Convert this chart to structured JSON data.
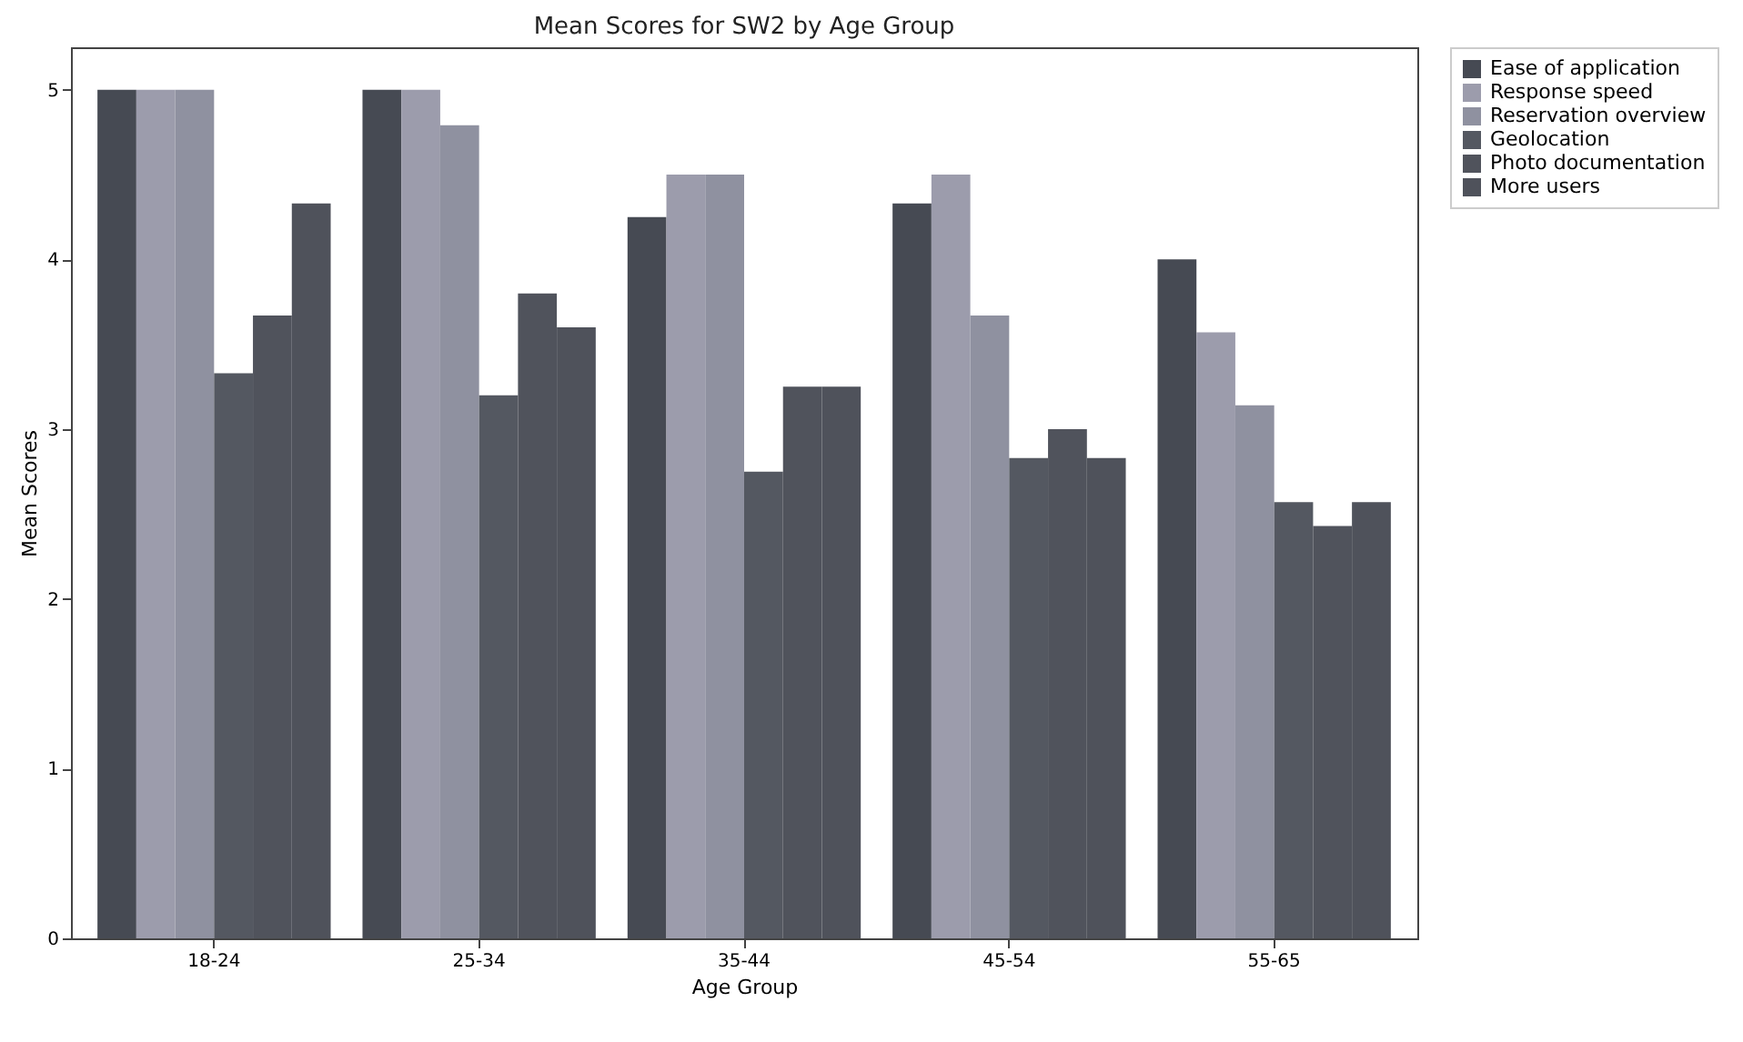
{
  "chart_data": {
    "type": "bar",
    "title": "Mean Scores for SW2 by Age Group",
    "xlabel": "Age Group",
    "ylabel": "Mean Scores",
    "categories": [
      "18-24",
      "25-34",
      "35-44",
      "45-54",
      "55-65"
    ],
    "series": [
      {
        "name": "Ease of application",
        "color": "#464a53",
        "values": [
          5,
          5,
          4.25,
          4.33,
          4.0
        ]
      },
      {
        "name": "Response speed",
        "color": "#9c9cac",
        "values": [
          5,
          5,
          4.5,
          4.5,
          3.57
        ]
      },
      {
        "name": "Reservation overview",
        "color": "#8f91a0",
        "values": [
          5,
          4.79,
          4.5,
          3.67,
          3.14
        ]
      },
      {
        "name": "Geolocation",
        "color": "#545861",
        "values": [
          3.33,
          3.2,
          2.75,
          2.83,
          2.57
        ]
      },
      {
        "name": "Photo documentation",
        "color": "#50535c",
        "values": [
          3.67,
          3.8,
          3.25,
          3.0,
          2.43
        ]
      },
      {
        "name": "More users",
        "color": "#4f525b",
        "values": [
          4.33,
          3.6,
          3.25,
          2.83,
          2.57
        ]
      }
    ],
    "ylim": [
      0,
      5.25
    ],
    "yticks": [
      0,
      1,
      2,
      3,
      4,
      5
    ],
    "grid": false,
    "legend": "right"
  }
}
